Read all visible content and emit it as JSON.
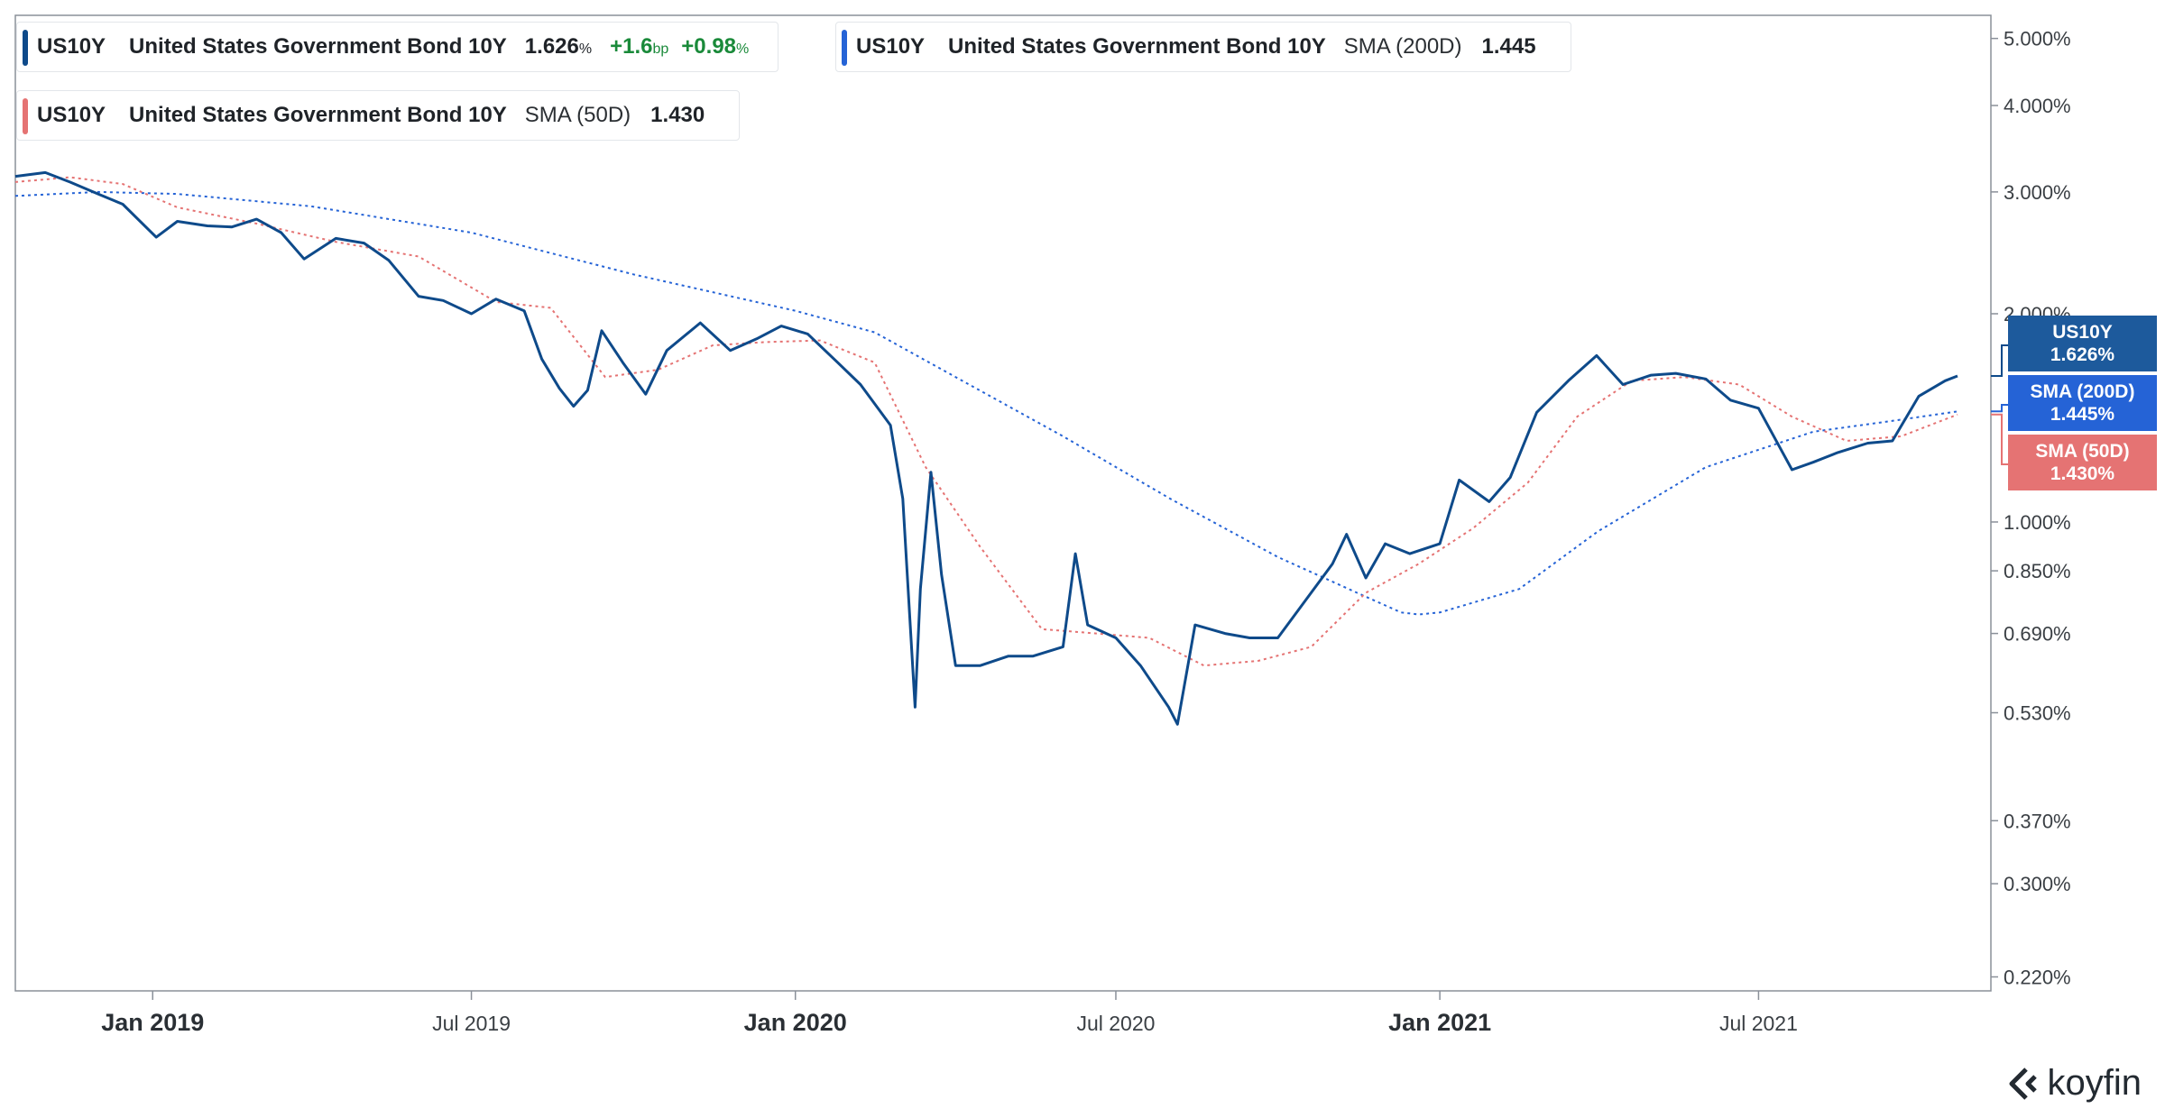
{
  "legend": [
    {
      "symbol": "US10Y",
      "name": "United States Government Bond 10Y",
      "indicator": "",
      "value": "1.626",
      "value_unit": "%",
      "change_bp": "+1.6",
      "change_bp_unit": "bp",
      "change_pct": "+0.98",
      "change_pct_unit": "%",
      "color": "#0e4a8a"
    },
    {
      "symbol": "US10Y",
      "name": "United States Government Bond 10Y",
      "indicator": "SMA (200D)",
      "value": "1.445",
      "color": "#2563d6"
    },
    {
      "symbol": "US10Y",
      "name": "United States Government Bond 10Y",
      "indicator": "SMA (50D)",
      "value": "1.430",
      "color": "#e57373"
    }
  ],
  "value_tags": [
    {
      "label": "US10Y",
      "value": "1.626%",
      "color": "#1d5a9c"
    },
    {
      "label": "SMA (200D)",
      "value": "1.445%",
      "color": "#2563d6"
    },
    {
      "label": "SMA (50D)",
      "value": "1.430%",
      "color": "#e57373"
    }
  ],
  "brand": "koyfin",
  "chart_data": {
    "type": "line",
    "yscale": "log",
    "ylim": [
      0.21,
      5.4
    ],
    "xlim": [
      "2018-10-15",
      "2021-10-22"
    ],
    "y_ticks": [
      {
        "value": 5.0,
        "label": "5.000%"
      },
      {
        "value": 4.0,
        "label": "4.000%"
      },
      {
        "value": 3.0,
        "label": "3.000%"
      },
      {
        "value": 2.0,
        "label": "2.000%"
      },
      {
        "value": 1.0,
        "label": "1.000%"
      },
      {
        "value": 0.85,
        "label": "0.850%"
      },
      {
        "value": 0.69,
        "label": "0.690%"
      },
      {
        "value": 0.53,
        "label": "0.530%"
      },
      {
        "value": 0.37,
        "label": "0.370%"
      },
      {
        "value": 0.3,
        "label": "0.300%"
      },
      {
        "value": 0.22,
        "label": "0.220%"
      }
    ],
    "x_ticks": [
      {
        "date": "2019-01-01",
        "label": "Jan 2019",
        "major": true
      },
      {
        "date": "2019-07-01",
        "label": "Jul 2019",
        "major": false
      },
      {
        "date": "2020-01-01",
        "label": "Jan 2020",
        "major": true
      },
      {
        "date": "2020-07-01",
        "label": "Jul 2020",
        "major": false
      },
      {
        "date": "2021-01-01",
        "label": "Jan 2021",
        "major": true
      },
      {
        "date": "2021-07-01",
        "label": "Jul 2021",
        "major": false
      }
    ],
    "series": [
      {
        "name": "US10Y",
        "color": "#0e4a8a",
        "style": "solid",
        "points": [
          [
            "2018-10-15",
            3.16
          ],
          [
            "2018-11-01",
            3.2
          ],
          [
            "2018-11-15",
            3.1
          ],
          [
            "2018-12-01",
            2.98
          ],
          [
            "2018-12-15",
            2.88
          ],
          [
            "2019-01-03",
            2.58
          ],
          [
            "2019-01-15",
            2.72
          ],
          [
            "2019-02-01",
            2.68
          ],
          [
            "2019-02-15",
            2.67
          ],
          [
            "2019-03-01",
            2.74
          ],
          [
            "2019-03-15",
            2.62
          ],
          [
            "2019-03-28",
            2.4
          ],
          [
            "2019-04-15",
            2.57
          ],
          [
            "2019-05-01",
            2.53
          ],
          [
            "2019-05-15",
            2.39
          ],
          [
            "2019-06-01",
            2.12
          ],
          [
            "2019-06-15",
            2.09
          ],
          [
            "2019-07-01",
            2.0
          ],
          [
            "2019-07-15",
            2.1
          ],
          [
            "2019-07-31",
            2.02
          ],
          [
            "2019-08-10",
            1.72
          ],
          [
            "2019-08-20",
            1.56
          ],
          [
            "2019-08-28",
            1.47
          ],
          [
            "2019-09-05",
            1.55
          ],
          [
            "2019-09-13",
            1.89
          ],
          [
            "2019-09-25",
            1.7
          ],
          [
            "2019-10-08",
            1.53
          ],
          [
            "2019-10-20",
            1.77
          ],
          [
            "2019-11-08",
            1.94
          ],
          [
            "2019-11-25",
            1.77
          ],
          [
            "2019-12-10",
            1.84
          ],
          [
            "2019-12-24",
            1.92
          ],
          [
            "2020-01-08",
            1.87
          ],
          [
            "2020-01-25",
            1.7
          ],
          [
            "2020-02-07",
            1.58
          ],
          [
            "2020-02-24",
            1.38
          ],
          [
            "2020-03-02",
            1.08
          ],
          [
            "2020-03-09",
            0.54
          ],
          [
            "2020-03-12",
            0.8
          ],
          [
            "2020-03-18",
            1.18
          ],
          [
            "2020-03-24",
            0.84
          ],
          [
            "2020-04-01",
            0.62
          ],
          [
            "2020-04-15",
            0.62
          ],
          [
            "2020-05-01",
            0.64
          ],
          [
            "2020-05-15",
            0.64
          ],
          [
            "2020-06-01",
            0.66
          ],
          [
            "2020-06-08",
            0.9
          ],
          [
            "2020-06-15",
            0.71
          ],
          [
            "2020-07-01",
            0.68
          ],
          [
            "2020-07-15",
            0.62
          ],
          [
            "2020-07-31",
            0.54
          ],
          [
            "2020-08-05",
            0.51
          ],
          [
            "2020-08-15",
            0.71
          ],
          [
            "2020-09-01",
            0.69
          ],
          [
            "2020-09-15",
            0.68
          ],
          [
            "2020-10-01",
            0.68
          ],
          [
            "2020-10-15",
            0.76
          ],
          [
            "2020-11-01",
            0.87
          ],
          [
            "2020-11-09",
            0.96
          ],
          [
            "2020-11-20",
            0.83
          ],
          [
            "2020-12-01",
            0.93
          ],
          [
            "2020-12-15",
            0.9
          ],
          [
            "2021-01-01",
            0.93
          ],
          [
            "2021-01-12",
            1.15
          ],
          [
            "2021-01-29",
            1.07
          ],
          [
            "2021-02-10",
            1.16
          ],
          [
            "2021-02-25",
            1.44
          ],
          [
            "2021-03-15",
            1.6
          ],
          [
            "2021-03-31",
            1.74
          ],
          [
            "2021-04-15",
            1.58
          ],
          [
            "2021-05-01",
            1.63
          ],
          [
            "2021-05-15",
            1.64
          ],
          [
            "2021-06-01",
            1.61
          ],
          [
            "2021-06-15",
            1.5
          ],
          [
            "2021-07-01",
            1.46
          ],
          [
            "2021-07-20",
            1.19
          ],
          [
            "2021-08-01",
            1.22
          ],
          [
            "2021-08-15",
            1.26
          ],
          [
            "2021-09-01",
            1.3
          ],
          [
            "2021-09-15",
            1.31
          ],
          [
            "2021-09-30",
            1.52
          ],
          [
            "2021-10-15",
            1.6
          ],
          [
            "2021-10-22",
            1.626
          ]
        ]
      },
      {
        "name": "SMA (200D)",
        "color": "#2563d6",
        "style": "dotted",
        "points": [
          [
            "2018-10-15",
            2.96
          ],
          [
            "2018-12-01",
            3.0
          ],
          [
            "2019-01-15",
            2.98
          ],
          [
            "2019-04-01",
            2.86
          ],
          [
            "2019-07-01",
            2.62
          ],
          [
            "2019-10-01",
            2.28
          ],
          [
            "2020-01-01",
            2.02
          ],
          [
            "2020-02-15",
            1.88
          ],
          [
            "2020-04-01",
            1.62
          ],
          [
            "2020-06-01",
            1.33
          ],
          [
            "2020-08-01",
            1.08
          ],
          [
            "2020-10-01",
            0.89
          ],
          [
            "2020-11-15",
            0.79
          ],
          [
            "2020-12-10",
            0.74
          ],
          [
            "2020-12-20",
            0.735
          ],
          [
            "2021-01-01",
            0.74
          ],
          [
            "2021-02-15",
            0.8
          ],
          [
            "2021-04-01",
            0.97
          ],
          [
            "2021-06-01",
            1.2
          ],
          [
            "2021-08-01",
            1.35
          ],
          [
            "2021-09-15",
            1.4
          ],
          [
            "2021-10-22",
            1.445
          ]
        ]
      },
      {
        "name": "SMA (50D)",
        "color": "#e57373",
        "style": "dotted",
        "points": [
          [
            "2018-10-15",
            3.1
          ],
          [
            "2018-11-15",
            3.15
          ],
          [
            "2018-12-15",
            3.08
          ],
          [
            "2019-01-15",
            2.85
          ],
          [
            "2019-03-01",
            2.7
          ],
          [
            "2019-04-15",
            2.54
          ],
          [
            "2019-06-01",
            2.42
          ],
          [
            "2019-07-15",
            2.08
          ],
          [
            "2019-08-15",
            2.04
          ],
          [
            "2019-09-15",
            1.62
          ],
          [
            "2019-10-15",
            1.66
          ],
          [
            "2019-11-15",
            1.8
          ],
          [
            "2019-12-15",
            1.82
          ],
          [
            "2020-01-15",
            1.83
          ],
          [
            "2020-02-15",
            1.7
          ],
          [
            "2020-03-15",
            1.2
          ],
          [
            "2020-04-15",
            0.92
          ],
          [
            "2020-05-20",
            0.7
          ],
          [
            "2020-06-20",
            0.69
          ],
          [
            "2020-07-20",
            0.68
          ],
          [
            "2020-08-20",
            0.62
          ],
          [
            "2020-09-20",
            0.63
          ],
          [
            "2020-10-20",
            0.66
          ],
          [
            "2020-11-20",
            0.79
          ],
          [
            "2020-12-20",
            0.87
          ],
          [
            "2021-01-20",
            0.98
          ],
          [
            "2021-02-20",
            1.14
          ],
          [
            "2021-03-20",
            1.42
          ],
          [
            "2021-04-20",
            1.6
          ],
          [
            "2021-05-20",
            1.62
          ],
          [
            "2021-06-20",
            1.58
          ],
          [
            "2021-07-20",
            1.42
          ],
          [
            "2021-08-20",
            1.31
          ],
          [
            "2021-09-20",
            1.33
          ],
          [
            "2021-10-22",
            1.43
          ]
        ]
      }
    ]
  }
}
